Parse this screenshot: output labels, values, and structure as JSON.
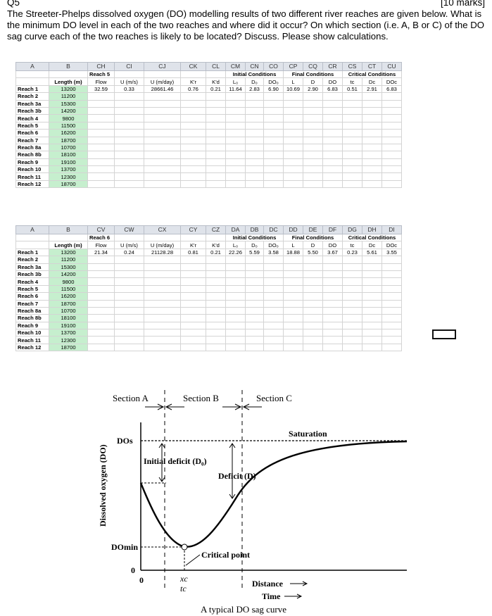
{
  "question": {
    "number": "Q5",
    "marks": "[10 marks]",
    "text": "The Streeter-Phelps dissolved oxygen (DO) modelling results of two different river reaches are given below. What is the minimum DO level in each of the two reaches and where did it occur? On which section (i.e. A, B or C) of the DO sag curve each of the two reaches is likely to be located? Discuss. Please show calculations."
  },
  "reach_lengths": [
    {
      "name": "Reach 1",
      "length": "13200"
    },
    {
      "name": "Reach 2",
      "length": "11200"
    },
    {
      "name": "Reach 3a",
      "length": "15300"
    },
    {
      "name": "Reach 3b",
      "length": "14200"
    },
    {
      "name": "Reach 4",
      "length": "9800"
    },
    {
      "name": "Reach 5",
      "length": "11500"
    },
    {
      "name": "Reach 6",
      "length": "16200"
    },
    {
      "name": "Reach 7",
      "length": "18700"
    },
    {
      "name": "Reach 8a",
      "length": "10700"
    },
    {
      "name": "Reach 8b",
      "length": "18100"
    },
    {
      "name": "Reach 9",
      "length": "19100"
    },
    {
      "name": "Reach 10",
      "length": "13700"
    },
    {
      "name": "Reach 11",
      "length": "12300"
    },
    {
      "name": "Reach 12",
      "length": "18700"
    }
  ],
  "table1": {
    "cols": [
      "A",
      "B",
      "CH",
      "CI",
      "CJ",
      "CK",
      "CL",
      "CM",
      "CN",
      "CO",
      "CP",
      "CQ",
      "CR",
      "CS",
      "CT",
      "CU"
    ],
    "reach_title": "Reach 5",
    "initial": "Initial Conditions",
    "final": "Final Conditions",
    "critical": "Critical Conditions",
    "length_label": "Length (m)",
    "params": [
      "Flow",
      "U (m/s)",
      "U (m/day)",
      "K'r",
      "K'd",
      "L₀",
      "D₀",
      "DO₀",
      "L",
      "D",
      "DO",
      "tc",
      "Dc",
      "DOc"
    ],
    "values": [
      "32.59",
      "0.33",
      "28661.46",
      "0.76",
      "0.21",
      "11.64",
      "2.83",
      "6.90",
      "10.69",
      "2.90",
      "6.83",
      "0.51",
      "2.91",
      "6.83"
    ]
  },
  "table2": {
    "cols": [
      "A",
      "B",
      "CV",
      "CW",
      "CX",
      "CY",
      "CZ",
      "DA",
      "DB",
      "DC",
      "DD",
      "DE",
      "DF",
      "DG",
      "DH",
      "DI"
    ],
    "reach_title": "Reach 6",
    "initial": "Initial Conditions",
    "final": "Final Conditions",
    "critical": "Critical Conditions",
    "length_label": "Length (m)",
    "params": [
      "Flow",
      "U (m/s)",
      "U (m/day)",
      "K'r",
      "K'd",
      "L₀",
      "D₀",
      "DO₀",
      "L",
      "D",
      "DO",
      "tc",
      "Dc",
      "DOc"
    ],
    "values": [
      "21.34",
      "0.24",
      "21128.28",
      "0.81",
      "0.21",
      "22.26",
      "5.59",
      "3.58",
      "18.88",
      "5.50",
      "3.67",
      "0.23",
      "5.61",
      "3.55"
    ]
  },
  "diagram": {
    "section_a": "Section A",
    "section_b": "Section B",
    "section_c": "Section C",
    "saturation": "Saturation",
    "initial_deficit": "Initial deficit (D₀)",
    "deficit": "Deficit (D)",
    "critical_point": "Critical point",
    "y_axis": "Dissolved oxygen (DO)",
    "do_s": "DOs",
    "do_min": "DOmin",
    "zero_y": "0",
    "zero_x": "0",
    "xc": "xc",
    "tc": "tc",
    "distance": "Distance",
    "time": "Time",
    "caption": "A typical DO sag curve"
  }
}
